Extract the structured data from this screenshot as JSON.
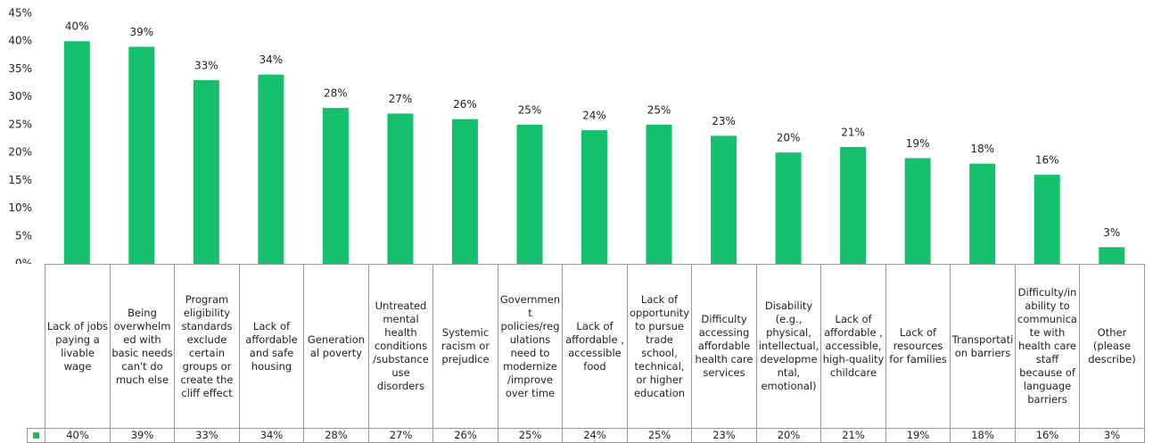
{
  "chart_data": {
    "type": "bar",
    "categories": [
      "Lack of jobs paying a livable wage",
      "Being overwhelmed with basic needs can't do much else",
      "Program eligibility standards exclude certain groups or create the cliff effect",
      "Lack of affordable and safe housing",
      "Generational poverty",
      "Untreated mental health conditions /substance use disorders",
      "Systemic racism or prejudice",
      "Government policies/regulations need to modernize /improve over time",
      "Lack of affordable , accessible food",
      "Lack of opportunity to pursue trade school, technical, or higher education",
      "Difficulty accessing affordable health care services",
      "Disability (e.g., physical, intellectual, developmental, emotional)",
      "Lack of affordable , accessible, high-quality childcare",
      "Lack of resources for families",
      "Transportation barriers",
      "Difficulty/inability to communicate with health care staff because of language barriers",
      "Other (please describe)"
    ],
    "values": [
      40,
      39,
      33,
      34,
      28,
      27,
      26,
      25,
      24,
      25,
      23,
      20,
      21,
      19,
      18,
      16,
      3
    ],
    "value_labels": [
      "40%",
      "39%",
      "33%",
      "34%",
      "28%",
      "27%",
      "26%",
      "25%",
      "24%",
      "25%",
      "23%",
      "20%",
      "21%",
      "19%",
      "18%",
      "16%",
      "3%"
    ],
    "color": "#14c06b",
    "ylim": [
      0,
      45
    ],
    "yticks": [
      {
        "value": 0,
        "label": "0%"
      },
      {
        "value": 5,
        "label": "5%"
      },
      {
        "value": 10,
        "label": "10%"
      },
      {
        "value": 15,
        "label": "15%"
      },
      {
        "value": 20,
        "label": "20%"
      },
      {
        "value": 25,
        "label": "25%"
      },
      {
        "value": 30,
        "label": "30%"
      },
      {
        "value": 35,
        "label": "35%"
      },
      {
        "value": 40,
        "label": "40%"
      },
      {
        "value": 45,
        "label": "45%"
      }
    ],
    "grid": false
  }
}
